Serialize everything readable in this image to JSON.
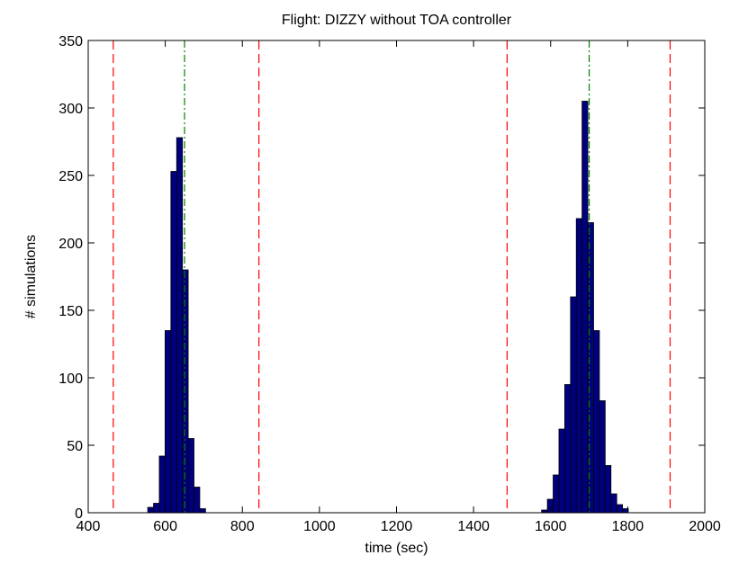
{
  "chart_data": {
    "type": "bar",
    "title": "Flight: DIZZY without TOA controller",
    "xlabel": "time (sec)",
    "ylabel": "# simulations",
    "xlim": [
      400,
      2000
    ],
    "ylim": [
      0,
      350
    ],
    "xticks": [
      400,
      600,
      800,
      1000,
      1200,
      1400,
      1600,
      1800,
      2000
    ],
    "yticks": [
      0,
      50,
      100,
      150,
      200,
      250,
      300,
      350
    ],
    "bin_width": 15,
    "bar_color": "#00007f",
    "bar_edge_color": "#000000",
    "grid": false,
    "legend": "none",
    "series": [
      {
        "x": [
          562,
          577,
          592,
          607,
          622,
          637,
          652,
          667,
          682,
          697
        ],
        "values": [
          4,
          7,
          42,
          135,
          253,
          278,
          180,
          55,
          19,
          3
        ]
      },
      {
        "x": [
          1584,
          1599,
          1614,
          1629,
          1644,
          1659,
          1674,
          1689,
          1704,
          1719,
          1734,
          1749,
          1764,
          1779,
          1794
        ],
        "values": [
          2,
          10,
          28,
          62,
          95,
          160,
          218,
          305,
          215,
          135,
          83,
          35,
          14,
          6,
          3
        ]
      }
    ],
    "vertical_lines": [
      {
        "x": 465,
        "style": "dashed",
        "color": "#ff0000"
      },
      {
        "x": 843,
        "style": "dashed",
        "color": "#ff0000"
      },
      {
        "x": 1487,
        "style": "dashed",
        "color": "#ff0000"
      },
      {
        "x": 1910,
        "style": "dashed",
        "color": "#ff0000"
      },
      {
        "x": 650,
        "style": "dash-dot",
        "color": "#008000"
      },
      {
        "x": 1700,
        "style": "dash-dot",
        "color": "#008000"
      }
    ]
  }
}
